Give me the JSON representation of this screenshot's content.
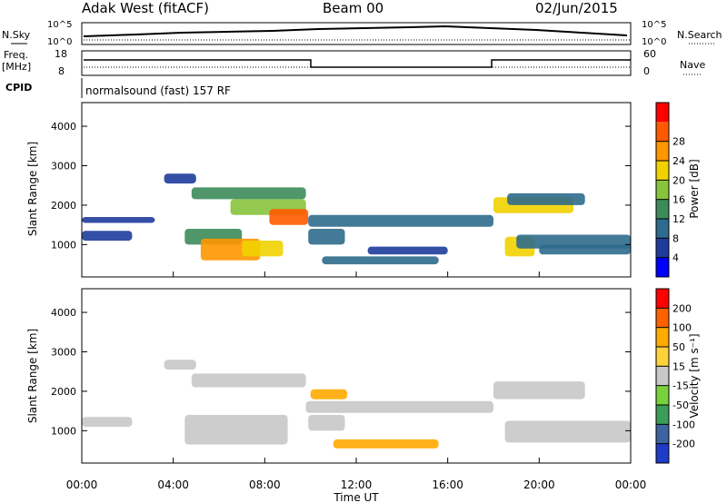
{
  "header": {
    "station": "Adak West (fitACF)",
    "beam": "Beam 00",
    "date": "02/Jun/2015"
  },
  "left_labels": {
    "nsky": "N.Sky",
    "freq": "Freq.",
    "freq_unit": "[MHz]",
    "cpid": "CPID"
  },
  "right_labels": {
    "nsearch": "N.Search",
    "nave": "Nave"
  },
  "cpid_text": "normalsound (fast) 157 RF",
  "noise_axis": {
    "top": "10^5",
    "bottom": "10^0"
  },
  "freq_axis": {
    "top": "18",
    "bottom": "8"
  },
  "nave_axis": {
    "top": "60",
    "bottom": "0"
  },
  "colors": {
    "power": [
      "#0000ff",
      "#1e3c9c",
      "#2e6b8c",
      "#3c8c5a",
      "#88c33c",
      "#f0d200",
      "#ff9600",
      "#ff5a00",
      "#ff0000"
    ],
    "velocity": [
      "#ff0000",
      "#ff6000",
      "#ffaa00",
      "#ffd23c",
      "#c8c8c8",
      "#78d23c",
      "#3c9c5a",
      "#3c64a0",
      "#1e3cc8"
    ]
  },
  "chart_data": [
    {
      "type": "heatmap",
      "panel": "power",
      "ylabel": "Slant Range [km]",
      "ylim": [
        180,
        4600
      ],
      "yticks": [
        "1000",
        "2000",
        "3000",
        "4000"
      ],
      "xlim": [
        0,
        24
      ],
      "colorbar_label": "Power [dB]",
      "colorbar_ticks": [
        "4",
        "8",
        "12",
        "16",
        "20",
        "24",
        "28"
      ],
      "regions": [
        {
          "t0": 0.0,
          "t1": 2.2,
          "r0": 1100,
          "r1": 1350,
          "level": 1
        },
        {
          "t0": 0.0,
          "t1": 3.2,
          "r0": 1550,
          "r1": 1700,
          "level": 1
        },
        {
          "t0": 3.6,
          "t1": 5.0,
          "r0": 2550,
          "r1": 2800,
          "level": 1
        },
        {
          "t0": 4.5,
          "t1": 7.0,
          "r0": 1000,
          "r1": 1400,
          "level": 3
        },
        {
          "t0": 5.2,
          "t1": 7.8,
          "r0": 600,
          "r1": 1150,
          "level": 6
        },
        {
          "t0": 7.0,
          "t1": 8.8,
          "r0": 700,
          "r1": 1100,
          "level": 5
        },
        {
          "t0": 4.8,
          "t1": 9.8,
          "r0": 2150,
          "r1": 2450,
          "level": 3
        },
        {
          "t0": 6.5,
          "t1": 9.8,
          "r0": 1750,
          "r1": 2150,
          "level": 4
        },
        {
          "t0": 8.2,
          "t1": 9.9,
          "r0": 1500,
          "r1": 1900,
          "level": 7
        },
        {
          "t0": 9.9,
          "t1": 18.0,
          "r0": 1450,
          "r1": 1750,
          "level": 2
        },
        {
          "t0": 9.9,
          "t1": 11.5,
          "r0": 1000,
          "r1": 1400,
          "level": 2
        },
        {
          "t0": 10.5,
          "t1": 15.6,
          "r0": 500,
          "r1": 700,
          "level": 2
        },
        {
          "t0": 12.5,
          "t1": 16.0,
          "r0": 750,
          "r1": 950,
          "level": 1
        },
        {
          "t0": 18.0,
          "t1": 21.5,
          "r0": 1800,
          "r1": 2200,
          "level": 5
        },
        {
          "t0": 18.6,
          "t1": 22.0,
          "r0": 2000,
          "r1": 2300,
          "level": 2
        },
        {
          "t0": 18.5,
          "t1": 19.8,
          "r0": 700,
          "r1": 1200,
          "level": 5
        },
        {
          "t0": 19.0,
          "t1": 24.0,
          "r0": 900,
          "r1": 1250,
          "level": 2
        },
        {
          "t0": 20.0,
          "t1": 24.0,
          "r0": 750,
          "r1": 1000,
          "level": 2
        }
      ]
    },
    {
      "type": "heatmap",
      "panel": "velocity",
      "ylabel": "Slant Range [km]",
      "xlabel": "Time UT",
      "ylim": [
        180,
        4600
      ],
      "yticks": [
        "1000",
        "2000",
        "3000",
        "4000"
      ],
      "xlim": [
        0,
        24
      ],
      "xticks": [
        "00:00",
        "04:00",
        "08:00",
        "12:00",
        "16:00",
        "20:00",
        "00:00"
      ],
      "colorbar_label": "Velocity [m s⁻¹]",
      "colorbar_ticks": [
        "200",
        "100",
        "50",
        "15",
        "-15",
        "-50",
        "-100",
        "-200"
      ],
      "regions": [
        {
          "t0": 0.0,
          "t1": 2.2,
          "r0": 1100,
          "r1": 1350,
          "level": 4
        },
        {
          "t0": 3.6,
          "t1": 5.0,
          "r0": 2550,
          "r1": 2800,
          "level": 4
        },
        {
          "t0": 4.8,
          "t1": 9.8,
          "r0": 2100,
          "r1": 2450,
          "level": 4
        },
        {
          "t0": 4.5,
          "t1": 9.0,
          "r0": 650,
          "r1": 1400,
          "level": 4
        },
        {
          "t0": 9.8,
          "t1": 18.0,
          "r0": 1450,
          "r1": 1750,
          "level": 4
        },
        {
          "t0": 9.9,
          "t1": 11.5,
          "r0": 1000,
          "r1": 1400,
          "level": 4
        },
        {
          "t0": 10.0,
          "t1": 11.6,
          "r0": 1800,
          "r1": 2050,
          "level": 2
        },
        {
          "t0": 11.0,
          "t1": 15.6,
          "r0": 550,
          "r1": 780,
          "level": 2
        },
        {
          "t0": 18.0,
          "t1": 22.0,
          "r0": 1800,
          "r1": 2250,
          "level": 4
        },
        {
          "t0": 18.5,
          "t1": 24.0,
          "r0": 700,
          "r1": 1250,
          "level": 4
        }
      ]
    }
  ]
}
